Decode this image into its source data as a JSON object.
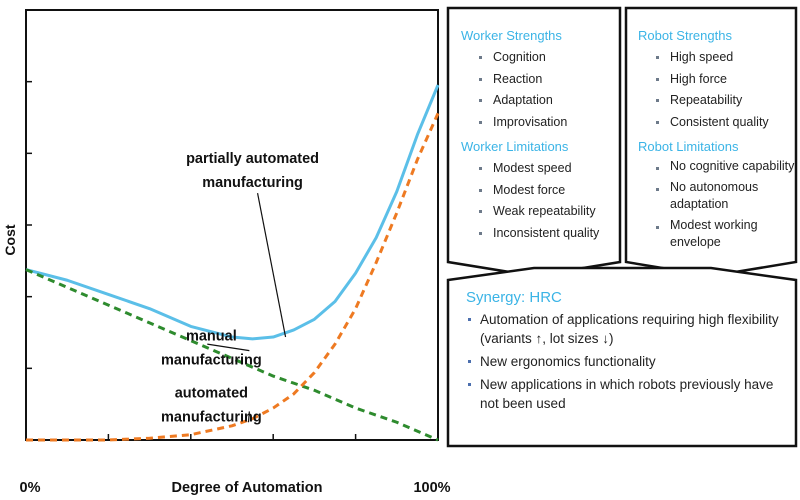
{
  "chart_data": {
    "type": "line",
    "xlabel": "Degree of Automation",
    "ylabel": "Cost",
    "x_tick_labels": [
      "0%",
      "100%"
    ],
    "xlim": [
      0,
      100
    ],
    "ylim": [
      0,
      100
    ],
    "series": [
      {
        "color": "#5bbfe8",
        "style": "solid",
        "x": [
          0,
          10,
          20,
          30,
          40,
          50,
          55,
          60,
          65,
          70,
          75,
          80,
          85,
          90,
          95,
          100
        ],
        "y": [
          48,
          45,
          41,
          37,
          32,
          29,
          28.5,
          29,
          31,
          34,
          39,
          47,
          57,
          70,
          86,
          100
        ]
      },
      {
        "color": "#2e8b2e",
        "style": "dashed",
        "x": [
          0,
          10,
          20,
          30,
          40,
          50,
          60,
          70,
          80,
          90,
          100
        ],
        "y": [
          48,
          43,
          38,
          33,
          28,
          23,
          18,
          14,
          9,
          5,
          0
        ]
      },
      {
        "color": "#ee7a22",
        "style": "dashed",
        "x": [
          0,
          10,
          20,
          30,
          40,
          50,
          55,
          60,
          65,
          70,
          75,
          80,
          85,
          90,
          95,
          100
        ],
        "y": [
          0,
          0,
          0,
          0.5,
          1.5,
          4,
          6,
          9,
          13,
          19,
          27,
          37,
          50,
          64,
          79,
          92
        ]
      }
    ],
    "annotations": [
      {
        "text": "partially automated\nmanufacturing",
        "x": 38,
        "y": 78,
        "target": [
          63,
          29
        ]
      },
      {
        "text": "manual\nmanufacturing",
        "x": 28,
        "y": 28,
        "target": [
          44,
          27
        ]
      },
      {
        "text": "automated\nmanufacturing",
        "x": 28,
        "y": 12,
        "target": [
          54,
          5
        ]
      }
    ]
  },
  "worker": {
    "strengths_title": "Worker Strengths",
    "strengths": [
      "Cognition",
      "Reaction",
      "Adaptation",
      "Improvisation"
    ],
    "limitations_title": "Worker Limitations",
    "limitations": [
      "Modest speed",
      "Modest force",
      "Weak repeatability",
      "Inconsistent quality"
    ]
  },
  "robot": {
    "strengths_title": "Robot Strengths",
    "strengths": [
      "High speed",
      "High force",
      "Repeatability",
      "Consistent quality"
    ],
    "limitations_title": "Robot Limitations",
    "limitations": [
      "No cognitive capability",
      "No autonomous adaptation",
      "Modest working envelope"
    ]
  },
  "synergy": {
    "title": "Synergy: HRC",
    "items": [
      "Automation of applications requiring high flexibility (variants ↑, lot sizes ↓)",
      "New ergonomics functionality",
      "New applications in which robots previously have not been used"
    ]
  }
}
